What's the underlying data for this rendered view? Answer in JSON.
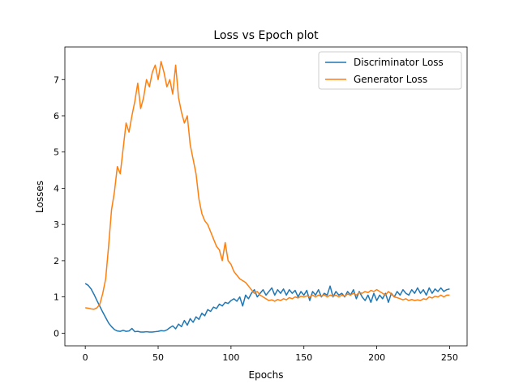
{
  "chart_data": {
    "type": "line",
    "title": "Loss vs Epoch plot",
    "xlabel": "Epochs",
    "ylabel": "Losses",
    "xlim": [
      -14,
      262
    ],
    "ylim": [
      -0.35,
      7.9
    ],
    "x_ticks": [
      0,
      50,
      100,
      150,
      200,
      250
    ],
    "y_ticks": [
      0,
      1,
      2,
      3,
      4,
      5,
      6,
      7
    ],
    "grid": false,
    "legend_position": "top-right",
    "x_step": 1,
    "series": [
      {
        "name": "Discriminator Loss",
        "color": "#1f77b4",
        "points": [
          [
            0,
            1.37
          ],
          [
            2,
            1.32
          ],
          [
            4,
            1.22
          ],
          [
            6,
            1.07
          ],
          [
            8,
            0.9
          ],
          [
            10,
            0.74
          ],
          [
            12,
            0.58
          ],
          [
            14,
            0.43
          ],
          [
            16,
            0.28
          ],
          [
            18,
            0.18
          ],
          [
            20,
            0.1
          ],
          [
            22,
            0.06
          ],
          [
            24,
            0.05
          ],
          [
            26,
            0.08
          ],
          [
            28,
            0.05
          ],
          [
            30,
            0.06
          ],
          [
            32,
            0.13
          ],
          [
            34,
            0.04
          ],
          [
            36,
            0.05
          ],
          [
            38,
            0.03
          ],
          [
            40,
            0.03
          ],
          [
            42,
            0.04
          ],
          [
            44,
            0.03
          ],
          [
            46,
            0.03
          ],
          [
            48,
            0.04
          ],
          [
            50,
            0.05
          ],
          [
            52,
            0.07
          ],
          [
            54,
            0.06
          ],
          [
            56,
            0.09
          ],
          [
            58,
            0.15
          ],
          [
            60,
            0.2
          ],
          [
            62,
            0.12
          ],
          [
            64,
            0.25
          ],
          [
            66,
            0.18
          ],
          [
            68,
            0.35
          ],
          [
            70,
            0.22
          ],
          [
            72,
            0.4
          ],
          [
            74,
            0.3
          ],
          [
            76,
            0.45
          ],
          [
            78,
            0.38
          ],
          [
            80,
            0.55
          ],
          [
            82,
            0.48
          ],
          [
            84,
            0.65
          ],
          [
            86,
            0.6
          ],
          [
            88,
            0.72
          ],
          [
            90,
            0.68
          ],
          [
            92,
            0.8
          ],
          [
            94,
            0.75
          ],
          [
            96,
            0.85
          ],
          [
            98,
            0.82
          ],
          [
            100,
            0.9
          ],
          [
            102,
            0.95
          ],
          [
            104,
            0.88
          ],
          [
            106,
            1.0
          ],
          [
            108,
            0.75
          ],
          [
            110,
            1.05
          ],
          [
            112,
            0.95
          ],
          [
            114,
            1.1
          ],
          [
            116,
            1.2
          ],
          [
            118,
            1.0
          ],
          [
            120,
            1.1
          ],
          [
            122,
            1.2
          ],
          [
            124,
            1.05
          ],
          [
            126,
            1.15
          ],
          [
            128,
            1.25
          ],
          [
            130,
            1.05
          ],
          [
            132,
            1.2
          ],
          [
            134,
            1.1
          ],
          [
            136,
            1.22
          ],
          [
            138,
            1.05
          ],
          [
            140,
            1.2
          ],
          [
            142,
            1.1
          ],
          [
            144,
            1.18
          ],
          [
            146,
            1.0
          ],
          [
            148,
            1.15
          ],
          [
            150,
            1.05
          ],
          [
            152,
            1.18
          ],
          [
            154,
            0.9
          ],
          [
            156,
            1.15
          ],
          [
            158,
            1.05
          ],
          [
            160,
            1.2
          ],
          [
            162,
            1.0
          ],
          [
            164,
            1.1
          ],
          [
            166,
            1.05
          ],
          [
            168,
            1.3
          ],
          [
            170,
            1.0
          ],
          [
            172,
            1.15
          ],
          [
            174,
            1.05
          ],
          [
            176,
            1.1
          ],
          [
            178,
            1.0
          ],
          [
            180,
            1.15
          ],
          [
            182,
            1.05
          ],
          [
            184,
            1.2
          ],
          [
            186,
            0.95
          ],
          [
            188,
            1.15
          ],
          [
            190,
            1.0
          ],
          [
            192,
            0.9
          ],
          [
            194,
            1.05
          ],
          [
            196,
            0.85
          ],
          [
            198,
            1.1
          ],
          [
            200,
            0.9
          ],
          [
            202,
            1.05
          ],
          [
            204,
            0.95
          ],
          [
            206,
            1.1
          ],
          [
            208,
            0.85
          ],
          [
            210,
            1.1
          ],
          [
            212,
            1.0
          ],
          [
            214,
            1.15
          ],
          [
            216,
            1.05
          ],
          [
            218,
            1.2
          ],
          [
            220,
            1.1
          ],
          [
            222,
            1.05
          ],
          [
            224,
            1.2
          ],
          [
            226,
            1.1
          ],
          [
            228,
            1.25
          ],
          [
            230,
            1.1
          ],
          [
            232,
            1.2
          ],
          [
            234,
            1.05
          ],
          [
            236,
            1.25
          ],
          [
            238,
            1.1
          ],
          [
            240,
            1.22
          ],
          [
            242,
            1.15
          ],
          [
            244,
            1.25
          ],
          [
            246,
            1.15
          ],
          [
            248,
            1.2
          ],
          [
            250,
            1.22
          ]
        ]
      },
      {
        "name": "Generator Loss",
        "color": "#ff7f0e",
        "points": [
          [
            0,
            0.7
          ],
          [
            2,
            0.69
          ],
          [
            4,
            0.67
          ],
          [
            6,
            0.66
          ],
          [
            8,
            0.7
          ],
          [
            10,
            0.8
          ],
          [
            12,
            1.1
          ],
          [
            14,
            1.5
          ],
          [
            16,
            2.4
          ],
          [
            18,
            3.4
          ],
          [
            20,
            3.9
          ],
          [
            22,
            4.6
          ],
          [
            24,
            4.4
          ],
          [
            26,
            5.1
          ],
          [
            28,
            5.8
          ],
          [
            30,
            5.55
          ],
          [
            32,
            6.0
          ],
          [
            34,
            6.4
          ],
          [
            36,
            6.9
          ],
          [
            38,
            6.2
          ],
          [
            40,
            6.5
          ],
          [
            42,
            7.0
          ],
          [
            44,
            6.8
          ],
          [
            46,
            7.2
          ],
          [
            48,
            7.4
          ],
          [
            50,
            7.0
          ],
          [
            52,
            7.5
          ],
          [
            54,
            7.2
          ],
          [
            56,
            6.8
          ],
          [
            58,
            7.0
          ],
          [
            60,
            6.6
          ],
          [
            62,
            7.4
          ],
          [
            64,
            6.5
          ],
          [
            66,
            6.1
          ],
          [
            68,
            5.8
          ],
          [
            70,
            6.0
          ],
          [
            72,
            5.2
          ],
          [
            74,
            4.8
          ],
          [
            76,
            4.4
          ],
          [
            78,
            3.7
          ],
          [
            80,
            3.3
          ],
          [
            82,
            3.1
          ],
          [
            84,
            3.0
          ],
          [
            86,
            2.8
          ],
          [
            88,
            2.6
          ],
          [
            90,
            2.4
          ],
          [
            92,
            2.3
          ],
          [
            94,
            2.0
          ],
          [
            96,
            2.5
          ],
          [
            98,
            2.0
          ],
          [
            100,
            1.9
          ],
          [
            102,
            1.7
          ],
          [
            104,
            1.6
          ],
          [
            106,
            1.5
          ],
          [
            108,
            1.45
          ],
          [
            110,
            1.4
          ],
          [
            112,
            1.3
          ],
          [
            114,
            1.2
          ],
          [
            116,
            1.1
          ],
          [
            118,
            1.15
          ],
          [
            120,
            1.05
          ],
          [
            122,
            1.0
          ],
          [
            124,
            0.95
          ],
          [
            126,
            0.9
          ],
          [
            128,
            0.92
          ],
          [
            130,
            0.88
          ],
          [
            132,
            0.93
          ],
          [
            134,
            0.9
          ],
          [
            136,
            0.95
          ],
          [
            138,
            0.92
          ],
          [
            140,
            0.98
          ],
          [
            142,
            0.95
          ],
          [
            144,
            1.0
          ],
          [
            146,
            0.97
          ],
          [
            148,
            1.02
          ],
          [
            150,
            1.0
          ],
          [
            152,
            1.03
          ],
          [
            154,
            1.0
          ],
          [
            156,
            1.05
          ],
          [
            158,
            1.0
          ],
          [
            160,
            1.05
          ],
          [
            162,
            1.02
          ],
          [
            164,
            1.06
          ],
          [
            166,
            1.0
          ],
          [
            168,
            1.05
          ],
          [
            170,
            1.02
          ],
          [
            172,
            1.05
          ],
          [
            174,
            1.0
          ],
          [
            176,
            1.05
          ],
          [
            178,
            1.02
          ],
          [
            180,
            1.08
          ],
          [
            182,
            1.05
          ],
          [
            184,
            1.1
          ],
          [
            186,
            1.05
          ],
          [
            188,
            1.12
          ],
          [
            190,
            1.1
          ],
          [
            192,
            1.15
          ],
          [
            194,
            1.12
          ],
          [
            196,
            1.18
          ],
          [
            198,
            1.15
          ],
          [
            200,
            1.2
          ],
          [
            202,
            1.15
          ],
          [
            204,
            1.1
          ],
          [
            206,
            1.05
          ],
          [
            208,
            1.15
          ],
          [
            210,
            1.08
          ],
          [
            212,
            1.0
          ],
          [
            214,
            0.98
          ],
          [
            216,
            0.95
          ],
          [
            218,
            0.92
          ],
          [
            220,
            0.95
          ],
          [
            222,
            0.9
          ],
          [
            224,
            0.93
          ],
          [
            226,
            0.9
          ],
          [
            228,
            0.92
          ],
          [
            230,
            0.9
          ],
          [
            232,
            0.95
          ],
          [
            234,
            0.93
          ],
          [
            236,
            1.0
          ],
          [
            238,
            0.97
          ],
          [
            240,
            1.02
          ],
          [
            242,
            1.0
          ],
          [
            244,
            1.05
          ],
          [
            246,
            1.0
          ],
          [
            248,
            1.05
          ],
          [
            250,
            1.05
          ]
        ]
      }
    ]
  }
}
